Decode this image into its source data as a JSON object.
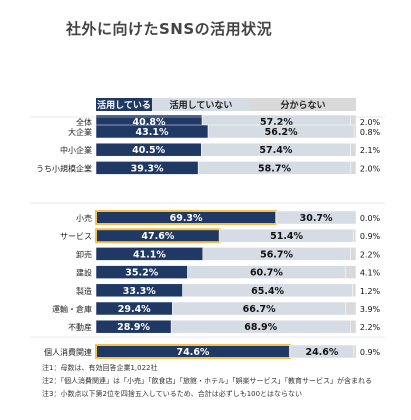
{
  "title": "社外に向けたSNSの活用状況",
  "chart_data": {
    "type": "bar",
    "orientation": "horizontal-stacked-100",
    "legend_position": "top",
    "series": [
      {
        "name": "活用している",
        "color": "#1f3864"
      },
      {
        "name": "活用していない",
        "color": "#d6dce4"
      },
      {
        "name": "分からない",
        "color": "#d9d9d9"
      }
    ],
    "groups": [
      {
        "rows": [
          {
            "label": "全体",
            "values": [
              40.8,
              57.2,
              2.0
            ],
            "labels": [
              "40.8%",
              "57.2%",
              "2.0%"
            ]
          }
        ]
      },
      {
        "rows": [
          {
            "label": "大企業",
            "values": [
              43.1,
              56.2,
              0.8
            ],
            "labels": [
              "43.1%",
              "56.2%",
              "0.8%"
            ]
          },
          {
            "label": "中小企業",
            "values": [
              40.5,
              57.4,
              2.1
            ],
            "labels": [
              "40.5%",
              "57.4%",
              "2.1%"
            ]
          },
          {
            "label": "うち小規模企業",
            "values": [
              39.3,
              58.7,
              2.0
            ],
            "labels": [
              "39.3%",
              "58.7%",
              "2.0%"
            ]
          }
        ]
      },
      {
        "rows": [
          {
            "label": "小売",
            "values": [
              69.3,
              30.7,
              0.0
            ],
            "labels": [
              "69.3%",
              "30.7%",
              "0.0%"
            ],
            "highlight": true
          },
          {
            "label": "サービス",
            "values": [
              47.6,
              51.4,
              0.9
            ],
            "labels": [
              "47.6%",
              "51.4%",
              "0.9%"
            ],
            "highlight": true
          },
          {
            "label": "卸売",
            "values": [
              41.1,
              56.7,
              2.2
            ],
            "labels": [
              "41.1%",
              "56.7%",
              "2.2%"
            ]
          },
          {
            "label": "建設",
            "values": [
              35.2,
              60.7,
              4.1
            ],
            "labels": [
              "35.2%",
              "60.7%",
              "4.1%"
            ]
          },
          {
            "label": "製造",
            "values": [
              33.3,
              65.4,
              1.2
            ],
            "labels": [
              "33.3%",
              "65.4%",
              "1.2%"
            ]
          },
          {
            "label": "運輸・倉庫",
            "values": [
              29.4,
              66.7,
              3.9
            ],
            "labels": [
              "29.4%",
              "66.7%",
              "3.9%"
            ]
          },
          {
            "label": "不動産",
            "values": [
              28.9,
              68.9,
              2.2
            ],
            "labels": [
              "28.9%",
              "68.9%",
              "2.2%"
            ]
          }
        ]
      },
      {
        "rows": [
          {
            "label": "個人消費関連",
            "values": [
              74.6,
              24.6,
              0.9
            ],
            "labels": [
              "74.6%",
              "24.6%",
              "0.9%"
            ],
            "highlight": true
          }
        ]
      }
    ],
    "highlight_color": "#f2c14e"
  },
  "notes": [
    "注1：母数は、有効回答企業1,022社",
    "注2：「個人消費関連」は「小売」「飲食店」「旅館・ホテル」「娯楽サービス」「教育サービス」が含まれる",
    "注3：小数点以下第2位を四捨五入しているため、合計は必ずしも100とはならない"
  ]
}
